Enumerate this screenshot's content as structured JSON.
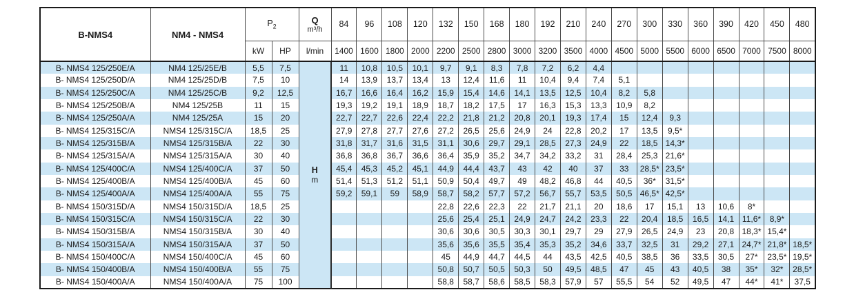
{
  "table": {
    "col1_header": "B-NMS4",
    "col2_header": "NM4 - NMS4",
    "p2": {
      "base": "P",
      "sub": "2"
    },
    "units": {
      "kw": "kW",
      "hp": "HP",
      "q_symbol": "Q",
      "q_unit": "m³/h",
      "q_unit2": "l/min"
    },
    "head_unit": {
      "symbol": "H",
      "unit": "m"
    },
    "flow_m3h": [
      "84",
      "96",
      "108",
      "120",
      "132",
      "150",
      "168",
      "180",
      "192",
      "210",
      "240",
      "270",
      "300",
      "330",
      "360",
      "390",
      "420",
      "450",
      "480"
    ],
    "flow_lmin": [
      "1400",
      "1600",
      "1800",
      "2000",
      "2200",
      "2500",
      "2800",
      "3000",
      "3200",
      "3500",
      "4000",
      "4500",
      "5000",
      "5500",
      "6000",
      "6500",
      "7000",
      "7500",
      "8000"
    ],
    "rows": [
      {
        "b_model": "B- NMS4 125/250E/A",
        "model": "NM4 125/25E/B",
        "kw": "5,5",
        "hp": "7,5",
        "heads": [
          "11",
          "10,8",
          "10,5",
          "10,1",
          "9,7",
          "9,1",
          "8,3",
          "7,8",
          "7,2",
          "6,2",
          "4,4",
          "",
          "",
          "",
          "",
          "",
          "",
          "",
          ""
        ]
      },
      {
        "b_model": "B- NMS4 125/250D/A",
        "model": "NM4 125/25D/B",
        "kw": "7,5",
        "hp": "10",
        "heads": [
          "14",
          "13,9",
          "13,7",
          "13,4",
          "13",
          "12,4",
          "11,6",
          "11",
          "10,4",
          "9,4",
          "7,4",
          "5,1",
          "",
          "",
          "",
          "",
          "",
          "",
          ""
        ]
      },
      {
        "b_model": "B- NMS4 125/250C/A",
        "model": "NM4 125/25C/B",
        "kw": "9,2",
        "hp": "12,5",
        "heads": [
          "16,7",
          "16,6",
          "16,4",
          "16,2",
          "15,9",
          "15,4",
          "14,6",
          "14,1",
          "13,5",
          "12,5",
          "10,4",
          "8,2",
          "5,8",
          "",
          "",
          "",
          "",
          "",
          ""
        ]
      },
      {
        "b_model": "B- NMS4 125/250B/A",
        "model": "NM4 125/25B",
        "kw": "11",
        "hp": "15",
        "heads": [
          "19,3",
          "19,2",
          "19,1",
          "18,9",
          "18,7",
          "18,2",
          "17,5",
          "17",
          "16,3",
          "15,3",
          "13,3",
          "10,9",
          "8,2",
          "",
          "",
          "",
          "",
          "",
          ""
        ]
      },
      {
        "b_model": "B- NMS4 125/250A/A",
        "model": "NM4 125/25A",
        "kw": "15",
        "hp": "20",
        "heads": [
          "22,7",
          "22,7",
          "22,6",
          "22,4",
          "22,2",
          "21,8",
          "21,2",
          "20,8",
          "20,1",
          "19,3",
          "17,4",
          "15",
          "12,4",
          "9,3",
          "",
          "",
          "",
          "",
          ""
        ]
      },
      {
        "b_model": "B- NMS4 125/315C/A",
        "model": "NMS4 125/315C/A",
        "kw": "18,5",
        "hp": "25",
        "heads": [
          "27,9",
          "27,8",
          "27,7",
          "27,6",
          "27,2",
          "26,5",
          "25,6",
          "24,9",
          "24",
          "22,8",
          "20,2",
          "17",
          "13,5",
          "9,5*",
          "",
          "",
          "",
          "",
          ""
        ]
      },
      {
        "b_model": "B- NMS4 125/315B/A",
        "model": "NMS4 125/315B/A",
        "kw": "22",
        "hp": "30",
        "heads": [
          "31,8",
          "31,7",
          "31,6",
          "31,5",
          "31,1",
          "30,6",
          "29,7",
          "29,1",
          "28,5",
          "27,3",
          "24,9",
          "22",
          "18,5",
          "14,3*",
          "",
          "",
          "",
          "",
          ""
        ]
      },
      {
        "b_model": "B- NMS4 125/315A/A",
        "model": "NMS4 125/315A/A",
        "kw": "30",
        "hp": "40",
        "heads": [
          "36,8",
          "36,8",
          "36,7",
          "36,6",
          "36,4",
          "35,9",
          "35,2",
          "34,7",
          "34,2",
          "33,2",
          "31",
          "28,4",
          "25,3",
          "21,6*",
          "",
          "",
          "",
          "",
          ""
        ]
      },
      {
        "b_model": "B- NMS4 125/400C/A",
        "model": "NMS4 125/400C/A",
        "kw": "37",
        "hp": "50",
        "heads": [
          "45,4",
          "45,3",
          "45,2",
          "45,1",
          "44,9",
          "44,4",
          "43,7",
          "43",
          "42",
          "40",
          "37",
          "33",
          "28,5*",
          "23,5*",
          "",
          "",
          "",
          "",
          ""
        ]
      },
      {
        "b_model": "B- NMS4 125/400B/A",
        "model": "NMS4 125/400B/A",
        "kw": "45",
        "hp": "60",
        "heads": [
          "51,4",
          "51,3",
          "51,2",
          "51,1",
          "50,9",
          "50,4",
          "49,7",
          "49",
          "48,2",
          "46,8",
          "44",
          "40,5",
          "36*",
          "31,5*",
          "",
          "",
          "",
          "",
          ""
        ]
      },
      {
        "b_model": "B- NMS4 125/400A/A",
        "model": "NMS4 125/400A/A",
        "kw": "55",
        "hp": "75",
        "heads": [
          "59,2",
          "59,1",
          "59",
          "58,9",
          "58,7",
          "58,2",
          "57,7",
          "57,2",
          "56,7",
          "55,7",
          "53,5",
          "50,5",
          "46,5*",
          "42,5*",
          "",
          "",
          "",
          "",
          ""
        ]
      },
      {
        "b_model": "B- NMS4 150/315D/A",
        "model": "NMS4 150/315D/A",
        "kw": "18,5",
        "hp": "25",
        "heads": [
          "",
          "",
          "",
          "",
          "22,8",
          "22,6",
          "22,3",
          "22",
          "21,7",
          "21,1",
          "20",
          "18,6",
          "17",
          "15,1",
          "13",
          "10,6",
          "8*",
          "",
          ""
        ]
      },
      {
        "b_model": "B- NMS4 150/315C/A",
        "model": "NMS4 150/315C/A",
        "kw": "22",
        "hp": "30",
        "heads": [
          "",
          "",
          "",
          "",
          "25,6",
          "25,4",
          "25,1",
          "24,9",
          "24,7",
          "24,2",
          "23,3",
          "22",
          "20,4",
          "18,5",
          "16,5",
          "14,1",
          "11,6*",
          "8,9*",
          ""
        ]
      },
      {
        "b_model": "B- NMS4 150/315B/A",
        "model": "NMS4 150/315B/A",
        "kw": "30",
        "hp": "40",
        "heads": [
          "",
          "",
          "",
          "",
          "30,6",
          "30,6",
          "30,5",
          "30,3",
          "30,1",
          "29,7",
          "29",
          "27,9",
          "26,5",
          "24,9",
          "23",
          "20,8",
          "18,3*",
          "15,4*",
          ""
        ]
      },
      {
        "b_model": "B- NMS4 150/315A/A",
        "model": "NMS4 150/315A/A",
        "kw": "37",
        "hp": "50",
        "heads": [
          "",
          "",
          "",
          "",
          "35,6",
          "35,6",
          "35,5",
          "35,4",
          "35,3",
          "35,2",
          "34,6",
          "33,7",
          "32,5",
          "31",
          "29,2",
          "27,1",
          "24,7*",
          "21,8*",
          "18,5*"
        ]
      },
      {
        "b_model": "B- NMS4 150/400C/A",
        "model": "NMS4 150/400C/A",
        "kw": "45",
        "hp": "60",
        "heads": [
          "",
          "",
          "",
          "",
          "45",
          "44,9",
          "44,7",
          "44,5",
          "44",
          "43,5",
          "42,5",
          "40,5",
          "38,5",
          "36",
          "33,5",
          "30,5",
          "27*",
          "23,5*",
          "19,5*"
        ]
      },
      {
        "b_model": "B- NMS4 150/400B/A",
        "model": "NMS4 150/400B/A",
        "kw": "55",
        "hp": "75",
        "heads": [
          "",
          "",
          "",
          "",
          "50,8",
          "50,7",
          "50,5",
          "50,3",
          "50",
          "49,5",
          "48,5",
          "47",
          "45",
          "43",
          "40,5",
          "38",
          "35*",
          "32*",
          "28,5*"
        ]
      },
      {
        "b_model": "B- NMS4 150/400A/A",
        "model": "NMS4 150/400A/A",
        "kw": "75",
        "hp": "100",
        "heads": [
          "",
          "",
          "",
          "",
          "58,8",
          "58,7",
          "58,6",
          "58,5",
          "58,3",
          "57,9",
          "57",
          "55,5",
          "54",
          "52",
          "49,5",
          "47",
          "44*",
          "41*",
          "37,5"
        ]
      }
    ]
  },
  "colors": {
    "row_alternate": "#cce6f5",
    "row_plain": "#ffffff",
    "border_inner": "#4a4a4a",
    "border_outer": "#1a1a1a",
    "text": "#1a1a1a"
  }
}
